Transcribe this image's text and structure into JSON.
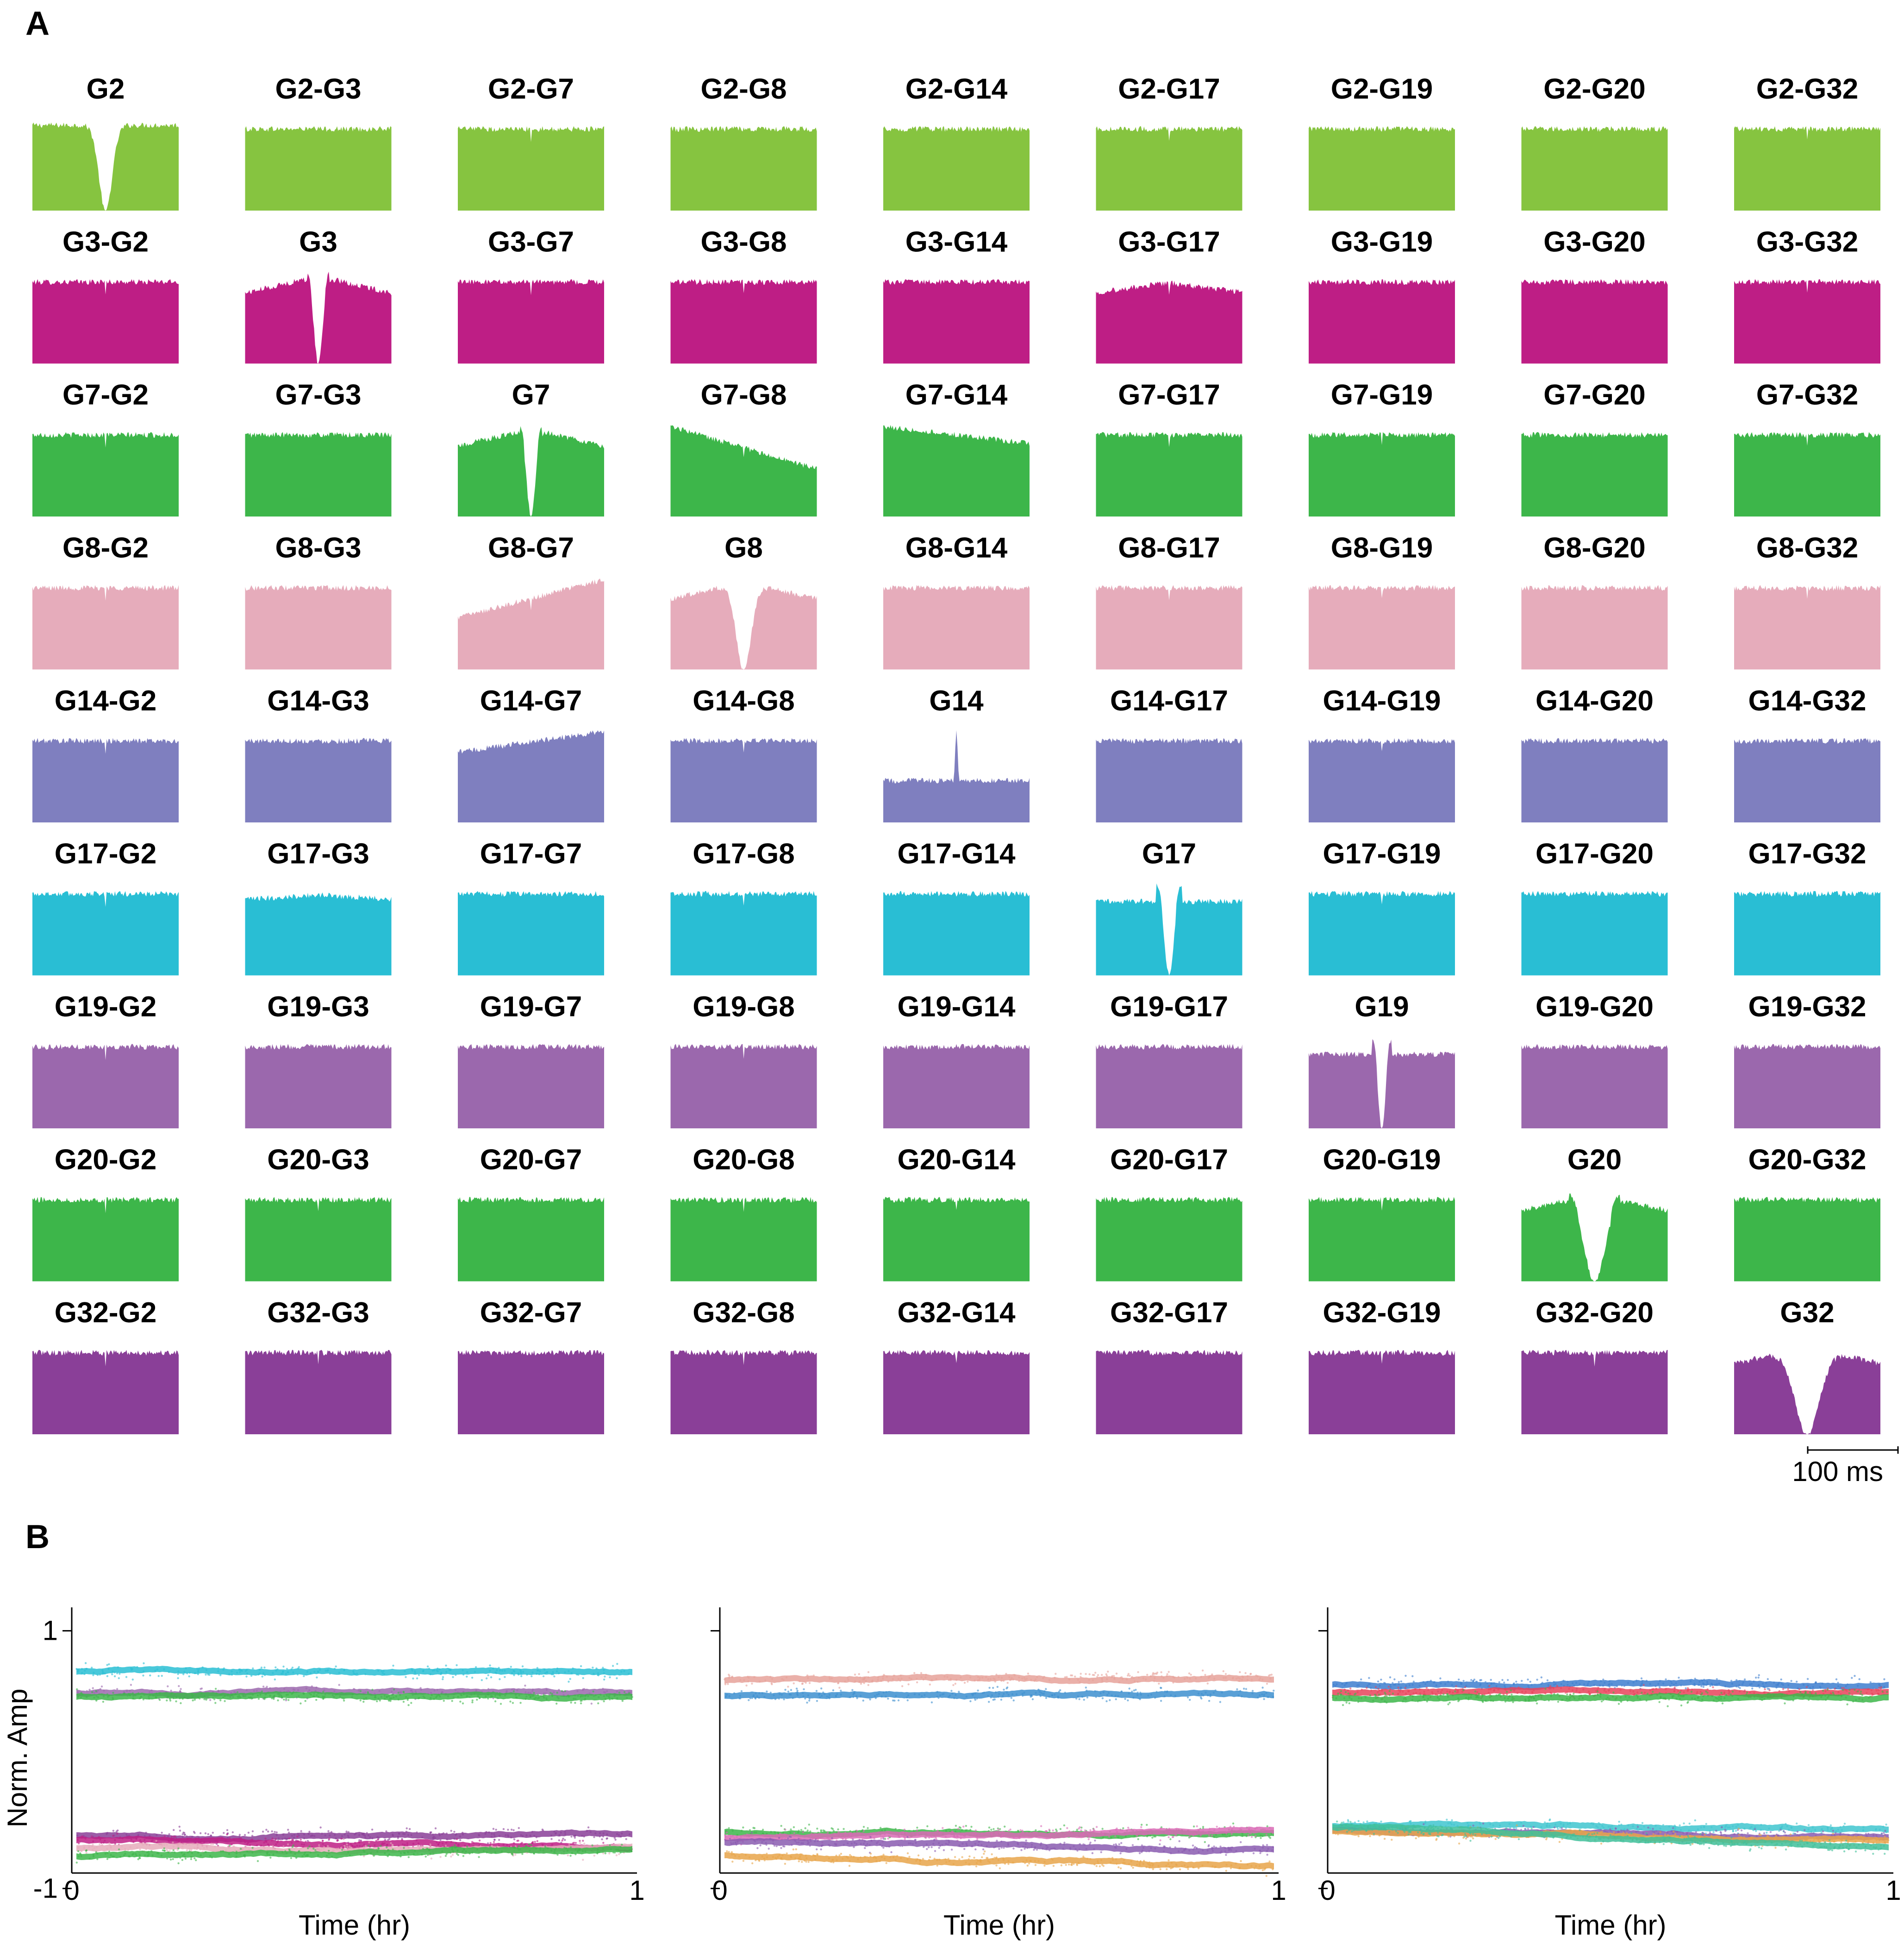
{
  "panels": {
    "a": {
      "letter": "A"
    },
    "b": {
      "letter": "B"
    }
  },
  "chart_data": [
    {
      "type": "bar",
      "kind": "histogram-grid",
      "rows": [
        "G2",
        "G3",
        "G7",
        "G8",
        "G14",
        "G17",
        "G19",
        "G20",
        "G32"
      ],
      "cols": [
        "G2",
        "G3",
        "G7",
        "G8",
        "G14",
        "G17",
        "G19",
        "G20",
        "G32"
      ],
      "row_colors": [
        "#86c440",
        "#be1e85",
        "#3db64a",
        "#e6acbb",
        "#7f7fbf",
        "#29bed4",
        "#9b68ad",
        "#3db64a",
        "#8a3f98"
      ],
      "cell_titles": [
        [
          "G2",
          "G2-G3",
          "G2-G7",
          "G2-G8",
          "G2-G14",
          "G2-G17",
          "G2-G19",
          "G2-G20",
          "G2-G32"
        ],
        [
          "G3-G2",
          "G3",
          "G3-G7",
          "G3-G8",
          "G3-G14",
          "G3-G17",
          "G3-G19",
          "G3-G20",
          "G3-G32"
        ],
        [
          "G7-G2",
          "G7-G3",
          "G7",
          "G7-G8",
          "G7-G14",
          "G7-G17",
          "G7-G19",
          "G7-G20",
          "G7-G32"
        ],
        [
          "G8-G2",
          "G8-G3",
          "G8-G7",
          "G8",
          "G8-G14",
          "G8-G17",
          "G8-G19",
          "G8-G20",
          "G8-G32"
        ],
        [
          "G14-G2",
          "G14-G3",
          "G14-G7",
          "G14-G8",
          "G14",
          "G14-G17",
          "G14-G19",
          "G14-G20",
          "G14-G32"
        ],
        [
          "G17-G2",
          "G17-G3",
          "G17-G7",
          "G17-G8",
          "G17-G14",
          "G17",
          "G17-G19",
          "G17-G20",
          "G17-G32"
        ],
        [
          "G19-G2",
          "G19-G3",
          "G19-G7",
          "G19-G8",
          "G19-G14",
          "G19-G17",
          "G19",
          "G19-G20",
          "G19-G32"
        ],
        [
          "G20-G2",
          "G20-G3",
          "G20-G7",
          "G20-G8",
          "G20-G14",
          "G20-G17",
          "G20-G19",
          "G20",
          "G20-G32"
        ],
        [
          "G32-G2",
          "G32-G3",
          "G32-G7",
          "G32-G8",
          "G32-G14",
          "G32-G17",
          "G32-G19",
          "G32-G20",
          "G32"
        ]
      ],
      "scale_bar_label": "100 ms"
    },
    {
      "type": "scatter",
      "ylabel": "Norm. Amp",
      "xlabel": "Time (hr)",
      "x_ticks": [
        "0",
        "1"
      ],
      "y_ticks": [
        "1",
        "-1"
      ],
      "xlim": [
        0,
        1
      ],
      "ylim": [
        -1.1,
        1.1
      ],
      "series": [
        {
          "color": "#29bed4",
          "start": 0.91,
          "end": 0.9
        },
        {
          "color": "#9b68ad",
          "start": 0.7,
          "end": 0.68
        },
        {
          "color": "#3db64a",
          "start": 0.66,
          "end": 0.65
        },
        {
          "color": "#8a3f98",
          "start": -0.72,
          "end": -0.72
        },
        {
          "color": "#be1e85",
          "start": -0.77,
          "end": -0.84
        },
        {
          "color": "#e6acbb",
          "start": -0.85,
          "end": -0.88
        },
        {
          "color": "#3db64a",
          "start": -0.93,
          "end": -0.86
        }
      ]
    },
    {
      "type": "scatter",
      "xlabel": "Time (hr)",
      "x_ticks": [
        "0",
        "1"
      ],
      "xlim": [
        0,
        1
      ],
      "ylim": [
        -1.1,
        1.1
      ],
      "series": [
        {
          "color": "#e6a29a",
          "start": 0.82,
          "end": 0.86
        },
        {
          "color": "#3d8fcf",
          "start": 0.67,
          "end": 0.68
        },
        {
          "color": "#3db64a",
          "start": -0.69,
          "end": -0.7
        },
        {
          "color": "#d96ab5",
          "start": -0.75,
          "end": -0.68
        },
        {
          "color": "#8a5cb0",
          "start": -0.79,
          "end": -0.87
        },
        {
          "color": "#e8a54a",
          "start": -0.92,
          "end": -1.04
        }
      ]
    },
    {
      "type": "scatter",
      "xlabel": "Time (hr)",
      "x_ticks": [
        "0",
        "1"
      ],
      "xlim": [
        0,
        1
      ],
      "ylim": [
        -1.1,
        1.1
      ],
      "series": [
        {
          "color": "#3d7ecf",
          "start": 0.78,
          "end": 0.79
        },
        {
          "color": "#e8435a",
          "start": 0.7,
          "end": 0.7
        },
        {
          "color": "#3db64a",
          "start": 0.65,
          "end": 0.66
        },
        {
          "color": "#3fc5cf",
          "start": -0.63,
          "end": -0.67
        },
        {
          "color": "#8a5cb0",
          "start": -0.67,
          "end": -0.74
        },
        {
          "color": "#e8a54a",
          "start": -0.68,
          "end": -0.79
        },
        {
          "color": "#3fbf9a",
          "start": -0.64,
          "end": -0.86
        }
      ]
    }
  ]
}
